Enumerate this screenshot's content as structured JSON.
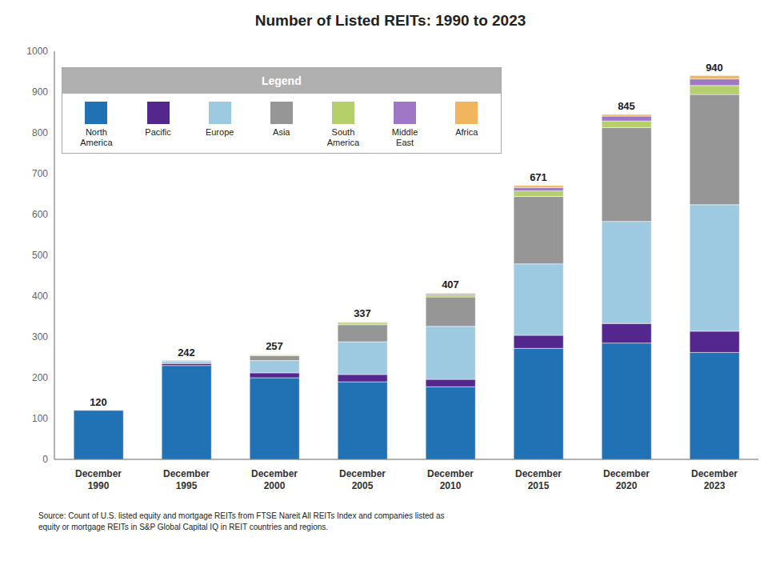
{
  "chart_data": {
    "type": "bar",
    "title": "Number of Listed REITs: 1990 to 2023",
    "categories": [
      "December\n1990",
      "December\n1995",
      "December\n2000",
      "December\n2005",
      "December\n2010",
      "December\n2015",
      "December\n2020",
      "December\n2023"
    ],
    "series": [
      {
        "name": "North\nAmerica",
        "color": "#2171b5",
        "values": [
          120,
          230,
          200,
          190,
          178,
          272,
          285,
          262
        ]
      },
      {
        "name": "Pacific",
        "color": "#54278f",
        "values": [
          0,
          5,
          12,
          18,
          18,
          32,
          48,
          52
        ]
      },
      {
        "name": "Europe",
        "color": "#9ecae1",
        "values": [
          0,
          5,
          30,
          80,
          130,
          175,
          250,
          310
        ]
      },
      {
        "name": "Asia",
        "color": "#969696",
        "values": [
          0,
          2,
          12,
          42,
          72,
          165,
          230,
          270
        ]
      },
      {
        "name": "South\nAmerica",
        "color": "#b5cf6b",
        "values": [
          0,
          0,
          2,
          4,
          5,
          14,
          16,
          22
        ]
      },
      {
        "name": "Middle\nEast",
        "color": "#9e78c6",
        "values": [
          0,
          0,
          0,
          2,
          3,
          8,
          12,
          16
        ]
      },
      {
        "name": "Africa",
        "color": "#f0b55e",
        "values": [
          0,
          0,
          1,
          1,
          1,
          5,
          4,
          8
        ]
      }
    ],
    "totals": [
      120,
      242,
      257,
      337,
      407,
      671,
      845,
      940
    ],
    "stacked": true,
    "ylim": [
      0,
      1000
    ],
    "yticks": [
      0,
      100,
      200,
      300,
      400,
      500,
      600,
      700,
      800,
      900,
      1000
    ],
    "grid": false,
    "legend": "upper left",
    "legend_title": "Legend",
    "source": "Source: Count of U.S. listed equity and mortgage REITs from FTSE Nareit All REITs Index and companies listed as\nequity or mortgage REITs in S&P Global Capital IQ in REIT countries and regions."
  }
}
